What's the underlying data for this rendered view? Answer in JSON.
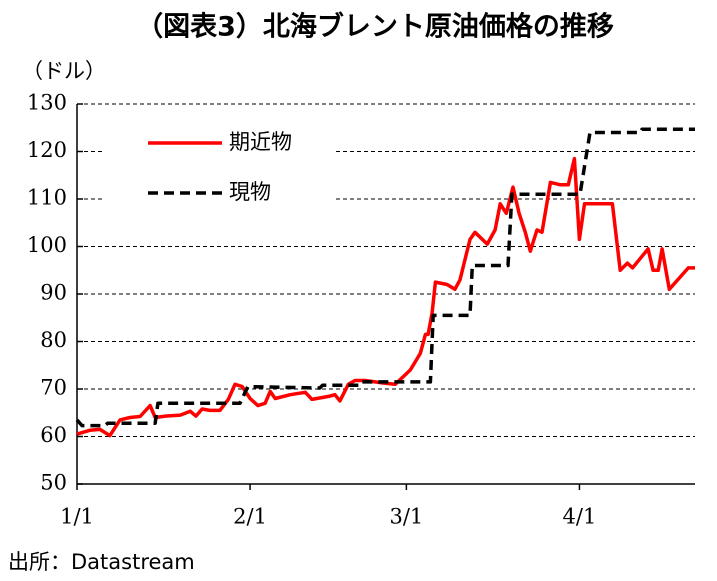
{
  "chart_data": {
    "type": "line",
    "title": "（図表3）北海ブレント原油価格の推移",
    "y_label": "（ドル）",
    "source": "出所：Datastream",
    "xlim": [
      0,
      110.7
    ],
    "xticks": [
      {
        "value": 0,
        "label": "1/1"
      },
      {
        "value": 31,
        "label": "2/1"
      },
      {
        "value": 59,
        "label": "3/1"
      },
      {
        "value": 90,
        "label": "4/1"
      }
    ],
    "ylim": [
      50,
      130
    ],
    "yticks": [
      50,
      60,
      70,
      80,
      90,
      100,
      110,
      120,
      130
    ],
    "grid": true,
    "legend": "upper-left",
    "series": [
      {
        "name": "期近物",
        "color": "#ff0000",
        "dashed": false,
        "x": [
          0,
          2.3,
          4.1,
          5.9,
          7.7,
          9.5,
          11.3,
          13.1,
          14,
          15.8,
          18.5,
          20.3,
          21.3,
          22.4,
          23.8,
          25.6,
          27.1,
          28.3,
          29.6,
          31,
          32.4,
          33.7,
          34.6,
          35.5,
          38.2,
          40.9,
          42.1,
          45.3,
          46.2,
          47.1,
          48.6,
          49.8,
          51.6,
          53.4,
          55.2,
          57,
          59.7,
          61.5,
          62.4,
          62.9,
          63.6,
          64.2,
          66.3,
          67.7,
          68.6,
          70.4,
          71.3,
          73.5,
          74.9,
          75.8,
          76.9,
          78.1,
          79.2,
          80.3,
          81.2,
          82.4,
          83.3,
          84.8,
          86.6,
          88,
          89.1,
          90,
          90.9,
          95.9,
          97.3,
          98.6,
          99.5,
          102.3,
          103.2,
          104.1,
          104.8,
          106.1,
          109.5,
          110.7
        ],
        "values": [
          60.5,
          61.3,
          61.5,
          60.2,
          63.5,
          64,
          64.2,
          66.5,
          64,
          64.3,
          64.5,
          65.3,
          64.3,
          65.8,
          65.5,
          65.5,
          67.8,
          71,
          70.5,
          68,
          66.5,
          67,
          69.5,
          68,
          68.8,
          69.3,
          67.8,
          68.5,
          68.8,
          67.5,
          71,
          71.8,
          71.8,
          71.5,
          71.2,
          71,
          74,
          77.5,
          81.5,
          81.5,
          86,
          92.5,
          92,
          91,
          93,
          101.5,
          103,
          100.5,
          103.5,
          109,
          107,
          112.5,
          107,
          103,
          99,
          103.5,
          103,
          113.5,
          113,
          113,
          118.5,
          101.5,
          109,
          109,
          95,
          96.5,
          95.5,
          99.5,
          95,
          95,
          99.5,
          91,
          95.5,
          95.5
        ]
      },
      {
        "name": "現物",
        "color": "#000000",
        "dashed": true,
        "x": [
          0,
          0.9,
          5,
          5.5,
          14,
          14.5,
          29.2,
          30.6,
          43.5,
          44,
          50.7,
          51,
          63.3,
          63.8,
          70.4,
          70.8,
          77.2,
          77.9,
          90.1,
          91.9,
          100.9,
          101.2,
          110.7
        ],
        "values": [
          63.5,
          62.3,
          62.3,
          62.8,
          62.8,
          67,
          67,
          70.5,
          70.2,
          70.8,
          70.8,
          71.5,
          71.5,
          85.5,
          85.5,
          96,
          96,
          111,
          111,
          124,
          124,
          124.7,
          124.7
        ]
      }
    ]
  }
}
